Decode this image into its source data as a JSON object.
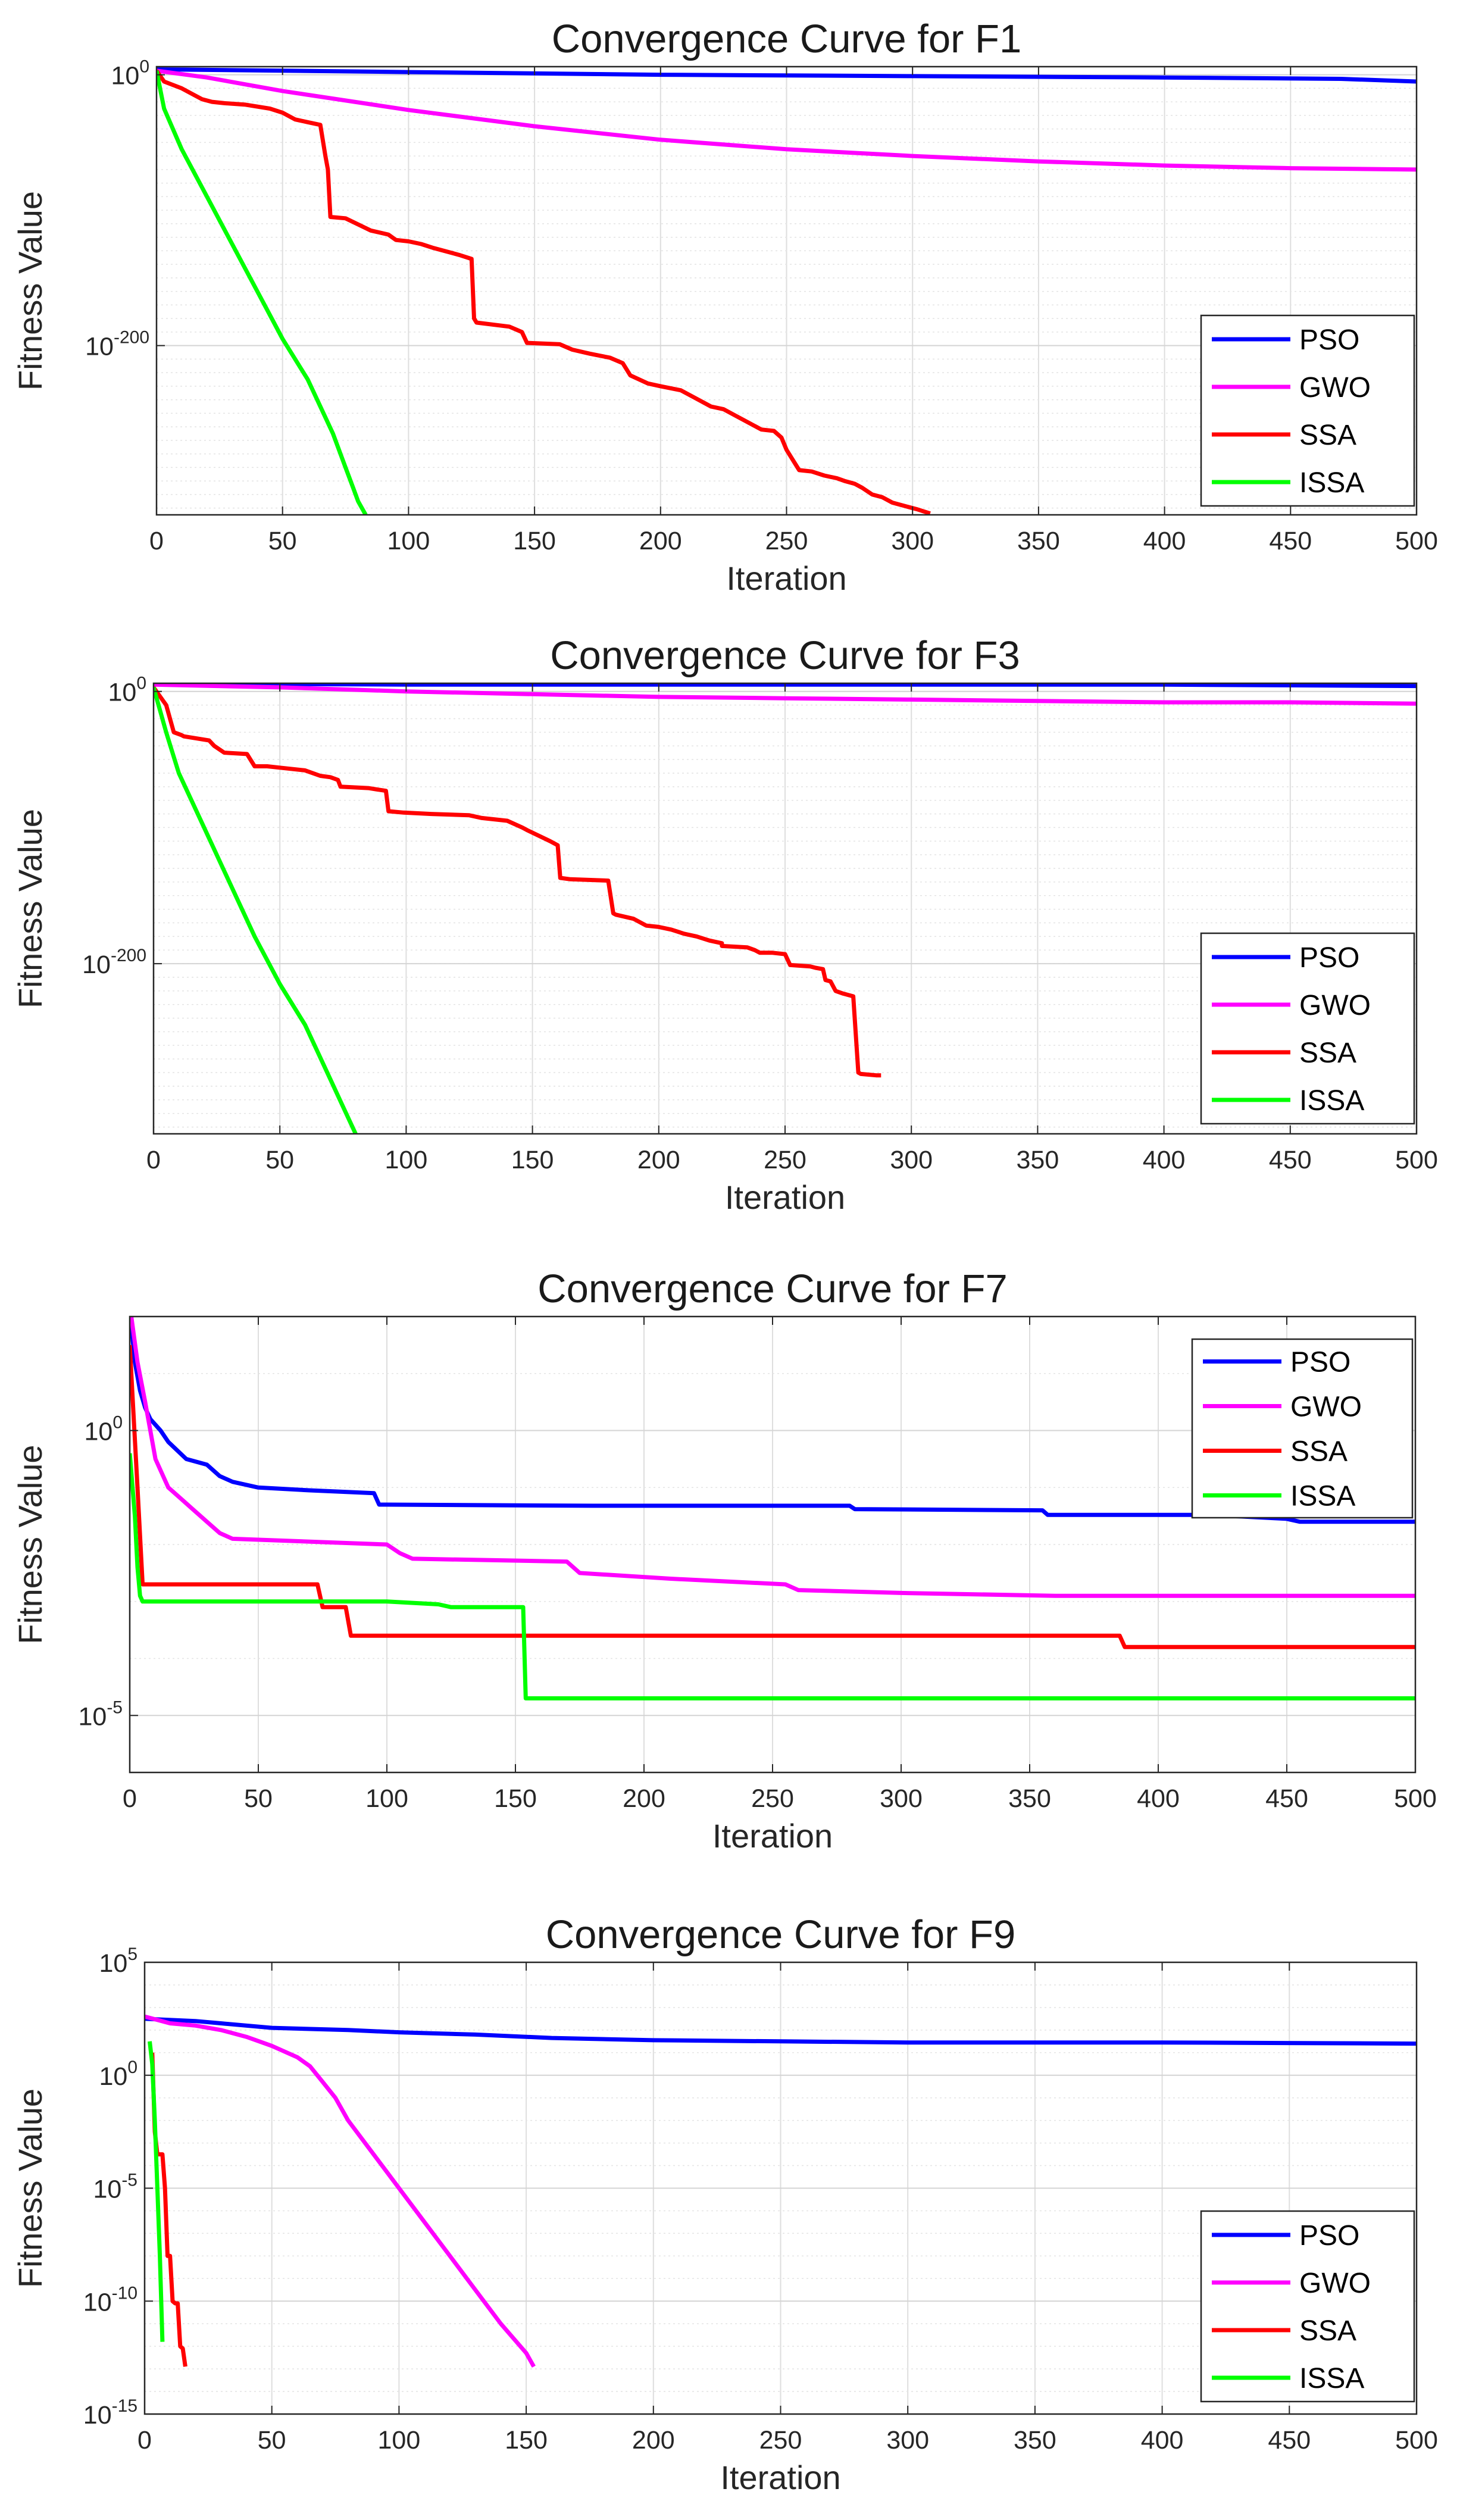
{
  "chart_data": [
    {
      "type": "line",
      "title": "Convergence Curve for F1",
      "xlabel": "Iteration",
      "ylabel": "Fitness Value",
      "xlim": [
        0,
        500
      ],
      "xticks": [
        0,
        50,
        100,
        150,
        200,
        250,
        300,
        350,
        400,
        450,
        500
      ],
      "yscale": "log",
      "ylim_exp": [
        -325,
        6
      ],
      "yticks": [
        {
          "base": "10",
          "exp": "0",
          "label": "10^0"
        },
        {
          "base": "10",
          "exp": "-200",
          "label": "10^-200"
        }
      ],
      "grid": true,
      "legend_location": "east",
      "series": [
        {
          "name": "PSO",
          "color": "#0000ff",
          "x": [
            0,
            100,
            200,
            300,
            400,
            470,
            500
          ],
          "log10_y": [
            4,
            2,
            0,
            -1,
            -2,
            -3,
            -5
          ]
        },
        {
          "name": "GWO",
          "color": "#ff00ff",
          "x": [
            0,
            20,
            50,
            100,
            150,
            200,
            250,
            300,
            350,
            400,
            450,
            500
          ],
          "log10_y": [
            3,
            -2,
            -12,
            -26,
            -38,
            -48,
            -55,
            -60,
            -64,
            -67,
            -69,
            -70
          ]
        },
        {
          "name": "SSA",
          "color": "#ff0000",
          "x": [
            0,
            3,
            10,
            15,
            18,
            22,
            27,
            35,
            45,
            50,
            55,
            60,
            65,
            67,
            68,
            69,
            75,
            85,
            92,
            95,
            100,
            105,
            110,
            120,
            125,
            126,
            127,
            140,
            145,
            147,
            160,
            165,
            172,
            180,
            185,
            188,
            195,
            200,
            208,
            215,
            220,
            225,
            230,
            235,
            240,
            245,
            248,
            250,
            255,
            260,
            265,
            270,
            273,
            277,
            280,
            284,
            288,
            292,
            298,
            302,
            307
          ],
          "log10_y": [
            3,
            -5,
            -10,
            -15,
            -18,
            -20,
            -21,
            -22,
            -25,
            -28,
            -33,
            -35,
            -37,
            -60,
            -70,
            -105,
            -106,
            -115,
            -118,
            -122,
            -123,
            -125,
            -128,
            -133,
            -136,
            -180,
            -183,
            -186,
            -190,
            -198,
            -199,
            -203,
            -206,
            -209,
            -213,
            -222,
            -228,
            -230,
            -233,
            -240,
            -245,
            -247,
            -252,
            -257,
            -262,
            -263,
            -268,
            -277,
            -292,
            -293,
            -296,
            -298,
            -300,
            -302,
            -305,
            -310,
            -312,
            -316,
            -319,
            -321,
            -324
          ]
        },
        {
          "name": "ISSA",
          "color": "#00ff00",
          "x": [
            0,
            3,
            10,
            20,
            30,
            40,
            50,
            60,
            65,
            70,
            75,
            78,
            80,
            83
          ],
          "log10_y": [
            3,
            -25,
            -55,
            -90,
            -125,
            -160,
            -195,
            -225,
            -245,
            -265,
            -290,
            -305,
            -315,
            -325
          ]
        }
      ]
    },
    {
      "type": "line",
      "title": "Convergence Curve for F3",
      "xlabel": "Iteration",
      "ylabel": "Fitness Value",
      "xlim": [
        0,
        500
      ],
      "xticks": [
        0,
        50,
        100,
        150,
        200,
        250,
        300,
        350,
        400,
        450,
        500
      ],
      "yscale": "log",
      "ylim_exp": [
        -325,
        6
      ],
      "yticks": [
        {
          "base": "10",
          "exp": "0",
          "label": "10^0"
        },
        {
          "base": "10",
          "exp": "-200",
          "label": "10^-200"
        }
      ],
      "grid": true,
      "legend_location": "east",
      "series": [
        {
          "name": "PSO",
          "color": "#0000ff",
          "x": [
            0,
            100,
            200,
            300,
            400,
            500
          ],
          "log10_y": [
            6,
            5,
            5,
            5,
            5,
            4
          ]
        },
        {
          "name": "GWO",
          "color": "#ff00ff",
          "x": [
            0,
            50,
            100,
            150,
            200,
            250,
            300,
            350,
            400,
            450,
            500
          ],
          "log10_y": [
            5,
            3,
            0,
            -2,
            -4,
            -5,
            -6,
            -7,
            -8,
            -8,
            -9
          ]
        },
        {
          "name": "SSA",
          "color": "#ff0000",
          "x": [
            0,
            5,
            8,
            11,
            12,
            22,
            24,
            28,
            37,
            40,
            45,
            50,
            60,
            66,
            70,
            73,
            74,
            85,
            92,
            93,
            99,
            110,
            125,
            130,
            140,
            146,
            148,
            157,
            160,
            161,
            165,
            180,
            182,
            183,
            190,
            195,
            200,
            205,
            210,
            215,
            220,
            225,
            225,
            235,
            238,
            240,
            245,
            250,
            252,
            260,
            262,
            265,
            266,
            268,
            270,
            273,
            277,
            279,
            280,
            286,
            288
          ],
          "log10_y": [
            3,
            -10,
            -30,
            -32,
            -33,
            -36,
            -40,
            -45,
            -46,
            -55,
            -55,
            -56,
            -58,
            -62,
            -63,
            -65,
            -70,
            -71,
            -73,
            -88,
            -89,
            -90,
            -91,
            -93,
            -95,
            -100,
            -102,
            -110,
            -113,
            -137,
            -138,
            -139,
            -163,
            -164,
            -167,
            -172,
            -173,
            -175,
            -178,
            -180,
            -183,
            -185,
            -187,
            -188,
            -190,
            -192,
            -192,
            -193,
            -201,
            -202,
            -203,
            -204,
            -212,
            -213,
            -220,
            -222,
            -224,
            -280,
            -281,
            -282,
            -282
          ]
        },
        {
          "name": "ISSA",
          "color": "#00ff00",
          "x": [
            0,
            5,
            10,
            20,
            30,
            40,
            50,
            60,
            65,
            70,
            75,
            80
          ],
          "log10_y": [
            3,
            -30,
            -60,
            -100,
            -140,
            -180,
            -215,
            -245,
            -265,
            -285,
            -305,
            -325
          ]
        }
      ]
    },
    {
      "type": "line",
      "title": "Convergence Curve for F7",
      "xlabel": "Iteration",
      "ylabel": "Fitness Value",
      "xlim": [
        0,
        500
      ],
      "xticks": [
        0,
        50,
        100,
        150,
        200,
        250,
        300,
        350,
        400,
        450,
        500
      ],
      "yscale": "log",
      "ylim_exp": [
        -6,
        2
      ],
      "yticks": [
        {
          "base": "10",
          "exp": "0",
          "label": "10^0"
        },
        {
          "base": "10",
          "exp": "-5",
          "label": "10^-5"
        }
      ],
      "grid": true,
      "legend_location": "top-right",
      "series": [
        {
          "name": "PSO",
          "color": "#0000ff",
          "x": [
            0,
            2,
            4,
            6,
            8,
            12,
            15,
            22,
            30,
            35,
            40,
            50,
            70,
            95,
            97,
            100,
            180,
            280,
            282,
            355,
            357,
            420,
            450,
            455,
            500
          ],
          "log10_y": [
            2.1,
            1.2,
            0.7,
            0.4,
            0.2,
            0.0,
            -0.2,
            -0.5,
            -0.6,
            -0.8,
            -0.9,
            -1.0,
            -1.05,
            -1.1,
            -1.3,
            -1.3,
            -1.32,
            -1.32,
            -1.38,
            -1.4,
            -1.48,
            -1.48,
            -1.55,
            -1.6,
            -1.6
          ]
        },
        {
          "name": "GWO",
          "color": "#ff00ff",
          "x": [
            0,
            3,
            6,
            10,
            15,
            20,
            25,
            30,
            35,
            40,
            100,
            105,
            110,
            170,
            175,
            210,
            255,
            260,
            300,
            360,
            500
          ],
          "log10_y": [
            2.2,
            1.2,
            0.5,
            -0.5,
            -1.0,
            -1.2,
            -1.4,
            -1.6,
            -1.8,
            -1.9,
            -2.0,
            -2.15,
            -2.25,
            -2.3,
            -2.5,
            -2.6,
            -2.7,
            -2.8,
            -2.85,
            -2.9,
            -2.9
          ]
        },
        {
          "name": "SSA",
          "color": "#ff0000",
          "x": [
            0,
            3,
            5,
            73,
            75,
            84,
            86,
            385,
            387,
            500
          ],
          "log10_y": [
            1.5,
            -1.0,
            -2.7,
            -2.7,
            -3.1,
            -3.1,
            -3.6,
            -3.6,
            -3.8,
            -3.8
          ]
        },
        {
          "name": "ISSA",
          "color": "#00ff00",
          "x": [
            0,
            2,
            3,
            4,
            5,
            100,
            120,
            125,
            153,
            154,
            500
          ],
          "log10_y": [
            -0.4,
            -1.5,
            -2.4,
            -2.9,
            -3.0,
            -3.0,
            -3.05,
            -3.1,
            -3.1,
            -4.7,
            -4.7
          ]
        }
      ]
    },
    {
      "type": "line",
      "title": "Convergence Curve for F9",
      "xlabel": "Iteration",
      "ylabel": "Fitness Value",
      "xlim": [
        0,
        500
      ],
      "xticks": [
        0,
        50,
        100,
        150,
        200,
        250,
        300,
        350,
        400,
        450,
        500
      ],
      "yscale": "log",
      "ylim_exp": [
        -15,
        5
      ],
      "yticks": [
        {
          "base": "10",
          "exp": "5",
          "label": "10^5"
        },
        {
          "base": "10",
          "exp": "0",
          "label": "10^0"
        },
        {
          "base": "10",
          "exp": "-5",
          "label": "10^-5"
        },
        {
          "base": "10",
          "exp": "-10",
          "label": "10^-10"
        },
        {
          "base": "10",
          "exp": "-15",
          "label": "10^-15"
        }
      ],
      "grid": true,
      "legend_location": "bottom-right",
      "series": [
        {
          "name": "PSO",
          "color": "#0000ff",
          "x": [
            0,
            20,
            30,
            50,
            80,
            100,
            130,
            160,
            200,
            250,
            300,
            400,
            500
          ],
          "log10_y": [
            2.5,
            2.4,
            2.3,
            2.1,
            2.0,
            1.9,
            1.8,
            1.65,
            1.55,
            1.5,
            1.45,
            1.45,
            1.4
          ]
        },
        {
          "name": "GWO",
          "color": "#ff00ff",
          "x": [
            0,
            10,
            20,
            30,
            40,
            50,
            60,
            65,
            70,
            75,
            80,
            90,
            100,
            110,
            120,
            130,
            140,
            150,
            153
          ],
          "log10_y": [
            2.6,
            2.3,
            2.2,
            2.0,
            1.7,
            1.3,
            0.8,
            0.4,
            -0.3,
            -1.0,
            -2.0,
            -3.5,
            -5.0,
            -6.5,
            -8.0,
            -9.5,
            -11.0,
            -12.3,
            -12.9
          ]
        },
        {
          "name": "SSA",
          "color": "#ff0000",
          "x": [
            3,
            4,
            5,
            7,
            8,
            9,
            10,
            11,
            12,
            13,
            14,
            15,
            16
          ],
          "log10_y": [
            1.0,
            -2.5,
            -3.5,
            -3.5,
            -5.0,
            -8.0,
            -8.0,
            -10.0,
            -10.1,
            -10.1,
            -12.0,
            -12.1,
            -12.9
          ]
        },
        {
          "name": "ISSA",
          "color": "#00ff00",
          "x": [
            2,
            3,
            4,
            5,
            6,
            7
          ],
          "log10_y": [
            1.5,
            0.5,
            -2.0,
            -5.0,
            -8.0,
            -11.8
          ]
        }
      ]
    }
  ]
}
